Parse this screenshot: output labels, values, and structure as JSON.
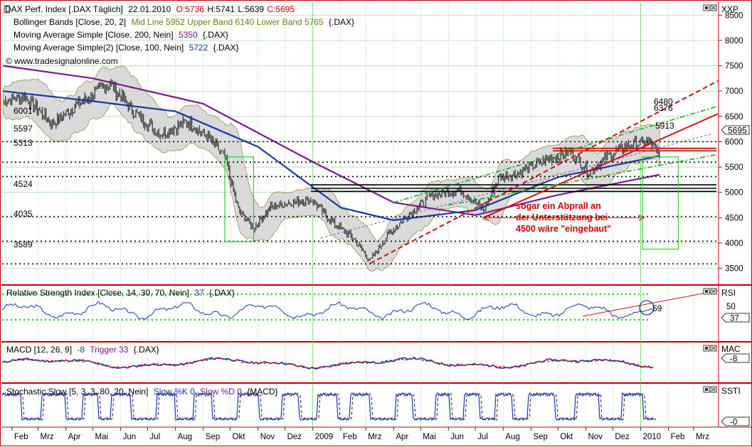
{
  "main_panel": {
    "title": {
      "name": "DAX Perf. Index [.DAX  Täglich]",
      "date": "22.01.2010",
      "open": "O:5736",
      "high": "H:5741",
      "low": "L:5639",
      "close": "C:5695"
    },
    "indicators": [
      {
        "prefix": "Bollinger Bands [Close, 20, 2]",
        "value": "Mid Line 5952 Upper Band 6140 Lower Band 5765",
        "suffix": "{.DAX}",
        "color": "#1a1a8c"
      },
      {
        "prefix": "Moving Average Simple [Close, 200, Nein]",
        "value": "5350",
        "suffix": "{.DAX}",
        "color": "#1a1a8c"
      },
      {
        "prefix": "Moving Average Simple(2) [Close, 100, Nein]",
        "value": "5722",
        "suffix": "{.DAX}",
        "color": "#7a1a8c"
      }
    ],
    "watermark": "© www.tradesignalonline.com",
    "axis_label": "XXP",
    "last_price": "5695",
    "level_labels": [
      "6001",
      "5597",
      "5313",
      "4524",
      "4035",
      "3589"
    ],
    "fib_labels": [
      "6480",
      "6376",
      "5913"
    ],
    "annotation": [
      "sogar ein Abprall an",
      "der Unterstützung bei",
      "4500 wäre \"eingebaut\""
    ]
  },
  "rsi_panel": {
    "title": "Relative Strength Index [Close, 14, 30, 70, Nein]",
    "value": "37",
    "suffix": "{.DAX}",
    "axis_label": "RSI",
    "ticks": [
      "50"
    ],
    "badge": "37",
    "marker": "59"
  },
  "macd_panel": {
    "title": "MACD [12, 26, 9]",
    "value": "-8",
    "trigger": "Trigger 33",
    "suffix": "{.DAX}",
    "axis_label": "MAC",
    "badge": "-8"
  },
  "stoch_panel": {
    "title": "Stochastic Slow [5, 3, 3, 80, 20, Nein]",
    "k": "Slow %K 0",
    "d": "Slow %D 0",
    "suffix": "{MACD}",
    "axis_label": "SSTI",
    "badge": "-0"
  },
  "x_axis": [
    "Feb",
    "Mrz",
    "Apr",
    "Mai",
    "Jun",
    "Jul",
    "Aug",
    "Sep",
    "Okt",
    "Nov",
    "Dez",
    "2009",
    "Feb",
    "Mrz",
    "Apr",
    "Mai",
    "Jun",
    "Jul",
    "Aug",
    "Sep",
    "Okt",
    "Nov",
    "Dez",
    "2010",
    "Feb",
    "Mrz"
  ],
  "colors": {
    "frame": "#c00000",
    "price_bars": "#3a3a3a",
    "band_fill": "#d6d6d6",
    "band_edge": "#8a8a30",
    "ma200": "#7a1a8c",
    "ma100": "#1a3aa0",
    "trend_red": "#cc1111",
    "trend_green": "#22aa22",
    "grid": "#90d090"
  },
  "chart_data": {
    "type": "line",
    "title": "DAX Perf. Index [.DAX  Täglich]",
    "y_axis_ticks": [
      8500,
      8000,
      7500,
      7000,
      6500,
      6000,
      5500,
      5000,
      4500,
      4000,
      3500
    ],
    "ylim": [
      3200,
      8700
    ],
    "x_start": "2008-01-21",
    "x_end": "2010-03-28",
    "series": [
      {
        "name": "DAX close (approx.)",
        "x": [
          "2008-01-22",
          "2008-02-15",
          "2008-03-17",
          "2008-04-15",
          "2008-05-20",
          "2008-06-15",
          "2008-07-15",
          "2008-08-15",
          "2008-09-05",
          "2008-09-25",
          "2008-10-10",
          "2008-10-27",
          "2008-11-15",
          "2008-12-05",
          "2008-12-31",
          "2009-01-20",
          "2009-02-15",
          "2009-03-06",
          "2009-03-25",
          "2009-04-20",
          "2009-05-15",
          "2009-06-15",
          "2009-07-10",
          "2009-07-28",
          "2009-08-20",
          "2009-09-20",
          "2009-10-15",
          "2009-11-05",
          "2009-11-25",
          "2009-12-20",
          "2010-01-12",
          "2010-01-22"
        ],
        "y": [
          6800,
          6900,
          6350,
          6750,
          7150,
          6600,
          6150,
          6400,
          6100,
          5700,
          4650,
          4300,
          4700,
          4800,
          4850,
          4450,
          4100,
          3650,
          4150,
          4600,
          4950,
          5050,
          4650,
          5300,
          5400,
          5650,
          5800,
          5400,
          5700,
          5950,
          6000,
          5695
        ]
      },
      {
        "name": "Moving Average Simple [Close, 200, Nein]",
        "x": [
          "2008-01-22",
          "2008-05-01",
          "2008-09-01",
          "2009-01-01",
          "2009-04-01",
          "2009-07-01",
          "2009-10-01",
          "2010-01-22"
        ],
        "y": [
          7500,
          7250,
          6750,
          5600,
          4800,
          4550,
          4950,
          5350
        ]
      },
      {
        "name": "Moving Average Simple(2) [Close, 100, Nein]",
        "x": [
          "2008-01-22",
          "2008-05-01",
          "2008-08-01",
          "2008-11-01",
          "2009-02-01",
          "2009-04-01",
          "2009-07-01",
          "2009-10-01",
          "2010-01-22"
        ],
        "y": [
          7000,
          6800,
          6600,
          5900,
          4700,
          4450,
          4650,
          5300,
          5722
        ]
      }
    ],
    "horizontal_levels": [
      6001,
      5597,
      5313,
      4524,
      4035,
      3589
    ],
    "fibonacci_targets": [
      6480,
      6376,
      5913
    ],
    "indicator_values": {
      "bollinger": {
        "mid": 5952,
        "upper": 6140,
        "lower": 5765
      },
      "rsi": 37,
      "macd": -8,
      "macd_trigger": 33
    }
  }
}
